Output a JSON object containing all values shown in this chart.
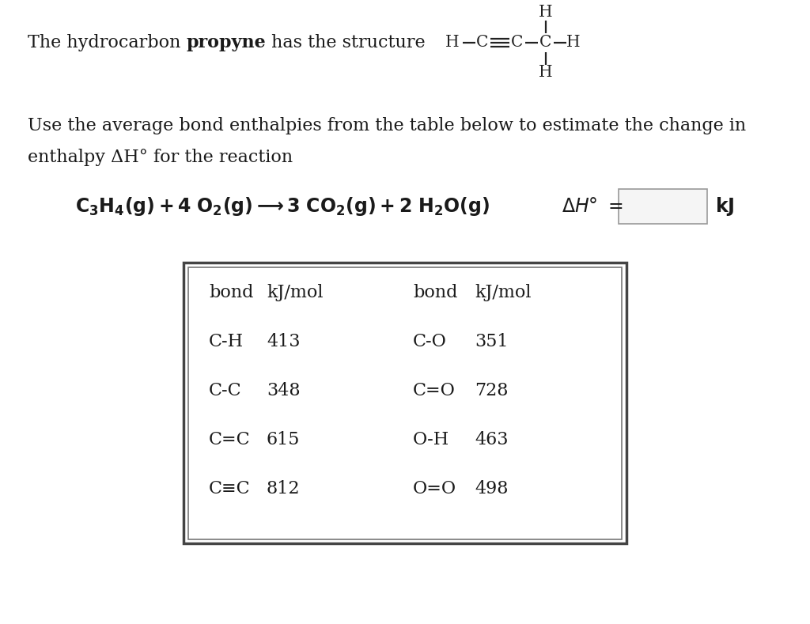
{
  "bg_color": "#ffffff",
  "text_color": "#1a1a1a",
  "line1_normal": "The hydrocarbon ",
  "line1_bold": "propyne",
  "line1_after": " has the structure",
  "desc_line1": "Use the average bond enthalpies from the table below to estimate the change in",
  "desc_line2": "enthalpy ΔH° for the reaction",
  "table_left": [
    [
      "C-H",
      "413"
    ],
    [
      "C-C",
      "348"
    ],
    [
      "C=C",
      "615"
    ],
    [
      "C≡C",
      "812"
    ]
  ],
  "table_right": [
    [
      "C-O",
      "351"
    ],
    [
      "C=O",
      "728"
    ],
    [
      "O-H",
      "463"
    ],
    [
      "O=O",
      "498"
    ]
  ],
  "fontsize_main": 16,
  "fontsize_reaction": 17,
  "fontsize_table": 16,
  "fig_width": 10.24,
  "fig_height": 7.89
}
